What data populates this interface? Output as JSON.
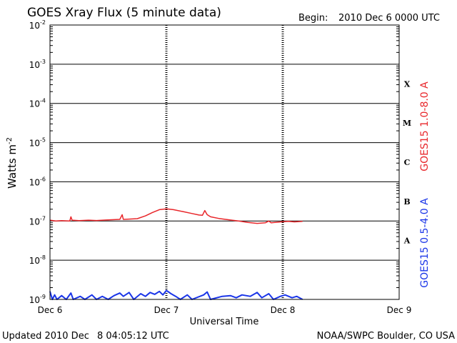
{
  "title": "GOES Xray Flux (5 minute data)",
  "begin_label": "Begin:",
  "begin_value": "2010 Dec 6 0000 UTC",
  "footer": {
    "updated_label": "Updated 2010 Dec",
    "updated_value": "8 04:05:12 UTC",
    "credit": "NOAA/SWPC Boulder, CO USA"
  },
  "chart_data": {
    "type": "line",
    "xlabel": "Universal Time",
    "ylabel_base": "Watts m",
    "ylabel_exp": "-2",
    "y_scale": "log",
    "ylim": [
      1e-09,
      0.01
    ],
    "y_ticks": [
      {
        "exp": "-9",
        "value": 1e-09
      },
      {
        "exp": "-8",
        "value": 1e-08
      },
      {
        "exp": "-7",
        "value": 1e-07
      },
      {
        "exp": "-6",
        "value": 1e-06
      },
      {
        "exp": "-5",
        "value": 1e-05
      },
      {
        "exp": "-4",
        "value": 0.0001
      },
      {
        "exp": "-3",
        "value": 0.001
      },
      {
        "exp": "-2",
        "value": 0.01
      }
    ],
    "x_range_days": [
      0,
      3
    ],
    "x_ticks": [
      {
        "label": "Dec 6",
        "day": 0
      },
      {
        "label": "Dec 7",
        "day": 1
      },
      {
        "label": "Dec 8",
        "day": 2
      },
      {
        "label": "Dec 9",
        "day": 3
      }
    ],
    "flare_classes": [
      {
        "label": "A",
        "low": 1e-08,
        "high": 1e-07
      },
      {
        "label": "B",
        "low": 1e-07,
        "high": 1e-06
      },
      {
        "label": "C",
        "low": 1e-06,
        "high": 1e-05
      },
      {
        "label": "M",
        "low": 1e-05,
        "high": 0.0001
      },
      {
        "label": "X",
        "low": 0.0001,
        "high": 0.001
      }
    ],
    "series": [
      {
        "name": "GOES15 1.0-8.0 A",
        "color": "#e8262a",
        "points": [
          [
            0.0,
            1.05e-07
          ],
          [
            0.05,
            1e-07
          ],
          [
            0.1,
            1.02e-07
          ],
          [
            0.17,
            1e-07
          ],
          [
            0.18,
            1.28e-07
          ],
          [
            0.19,
            1.05e-07
          ],
          [
            0.25,
            1.02e-07
          ],
          [
            0.33,
            1.05e-07
          ],
          [
            0.4,
            1.03e-07
          ],
          [
            0.48,
            1.06e-07
          ],
          [
            0.6,
            1.1e-07
          ],
          [
            0.62,
            1.45e-07
          ],
          [
            0.63,
            1.1e-07
          ],
          [
            0.68,
            1.12e-07
          ],
          [
            0.75,
            1.15e-07
          ],
          [
            0.82,
            1.35e-07
          ],
          [
            0.88,
            1.65e-07
          ],
          [
            0.94,
            1.95e-07
          ],
          [
            1.0,
            2.05e-07
          ],
          [
            1.06,
            1.95e-07
          ],
          [
            1.14,
            1.75e-07
          ],
          [
            1.22,
            1.55e-07
          ],
          [
            1.28,
            1.42e-07
          ],
          [
            1.31,
            1.4e-07
          ],
          [
            1.33,
            1.85e-07
          ],
          [
            1.35,
            1.45e-07
          ],
          [
            1.38,
            1.28e-07
          ],
          [
            1.45,
            1.16e-07
          ],
          [
            1.55,
            1.06e-07
          ],
          [
            1.62,
            1e-07
          ],
          [
            1.7,
            9.2e-08
          ],
          [
            1.78,
            8.7e-08
          ],
          [
            1.85,
            9e-08
          ],
          [
            1.88,
            1e-07
          ],
          [
            1.9,
            9e-08
          ],
          [
            1.95,
            9.3e-08
          ],
          [
            2.0,
            9.6e-08
          ],
          [
            2.05,
            9.8e-08
          ],
          [
            2.1,
            9.5e-08
          ],
          [
            2.17,
            9.8e-08
          ]
        ]
      },
      {
        "name": "GOES15 0.5-4.0 A",
        "color": "#1a35e8",
        "points": [
          [
            0.0,
            1.6e-09
          ],
          [
            0.02,
            1e-09
          ],
          [
            0.04,
            1.3e-09
          ],
          [
            0.06,
            1e-09
          ],
          [
            0.1,
            1.25e-09
          ],
          [
            0.14,
            1e-09
          ],
          [
            0.18,
            1.45e-09
          ],
          [
            0.2,
            1e-09
          ],
          [
            0.26,
            1.2e-09
          ],
          [
            0.3,
            1e-09
          ],
          [
            0.36,
            1.3e-09
          ],
          [
            0.4,
            1e-09
          ],
          [
            0.45,
            1.2e-09
          ],
          [
            0.5,
            1e-09
          ],
          [
            0.55,
            1.25e-09
          ],
          [
            0.6,
            1.45e-09
          ],
          [
            0.63,
            1.2e-09
          ],
          [
            0.68,
            1.5e-09
          ],
          [
            0.72,
            1e-09
          ],
          [
            0.78,
            1.4e-09
          ],
          [
            0.82,
            1.2e-09
          ],
          [
            0.86,
            1.5e-09
          ],
          [
            0.9,
            1.35e-09
          ],
          [
            0.94,
            1.6e-09
          ],
          [
            0.97,
            1.3e-09
          ],
          [
            1.0,
            1.7e-09
          ],
          [
            1.04,
            1.4e-09
          ],
          [
            1.08,
            1.2e-09
          ],
          [
            1.12,
            1e-09
          ],
          [
            1.18,
            1.3e-09
          ],
          [
            1.22,
            1e-09
          ],
          [
            1.32,
            1.3e-09
          ],
          [
            1.35,
            1.55e-09
          ],
          [
            1.38,
            1e-09
          ],
          [
            1.48,
            1.2e-09
          ],
          [
            1.55,
            1.25e-09
          ],
          [
            1.6,
            1.1e-09
          ],
          [
            1.65,
            1.3e-09
          ],
          [
            1.72,
            1.2e-09
          ],
          [
            1.78,
            1.5e-09
          ],
          [
            1.82,
            1.1e-09
          ],
          [
            1.88,
            1.4e-09
          ],
          [
            1.92,
            1e-09
          ],
          [
            1.98,
            1.2e-09
          ],
          [
            2.02,
            1.3e-09
          ],
          [
            2.08,
            1.1e-09
          ],
          [
            2.12,
            1.2e-09
          ],
          [
            2.17,
            1e-09
          ]
        ]
      }
    ]
  }
}
